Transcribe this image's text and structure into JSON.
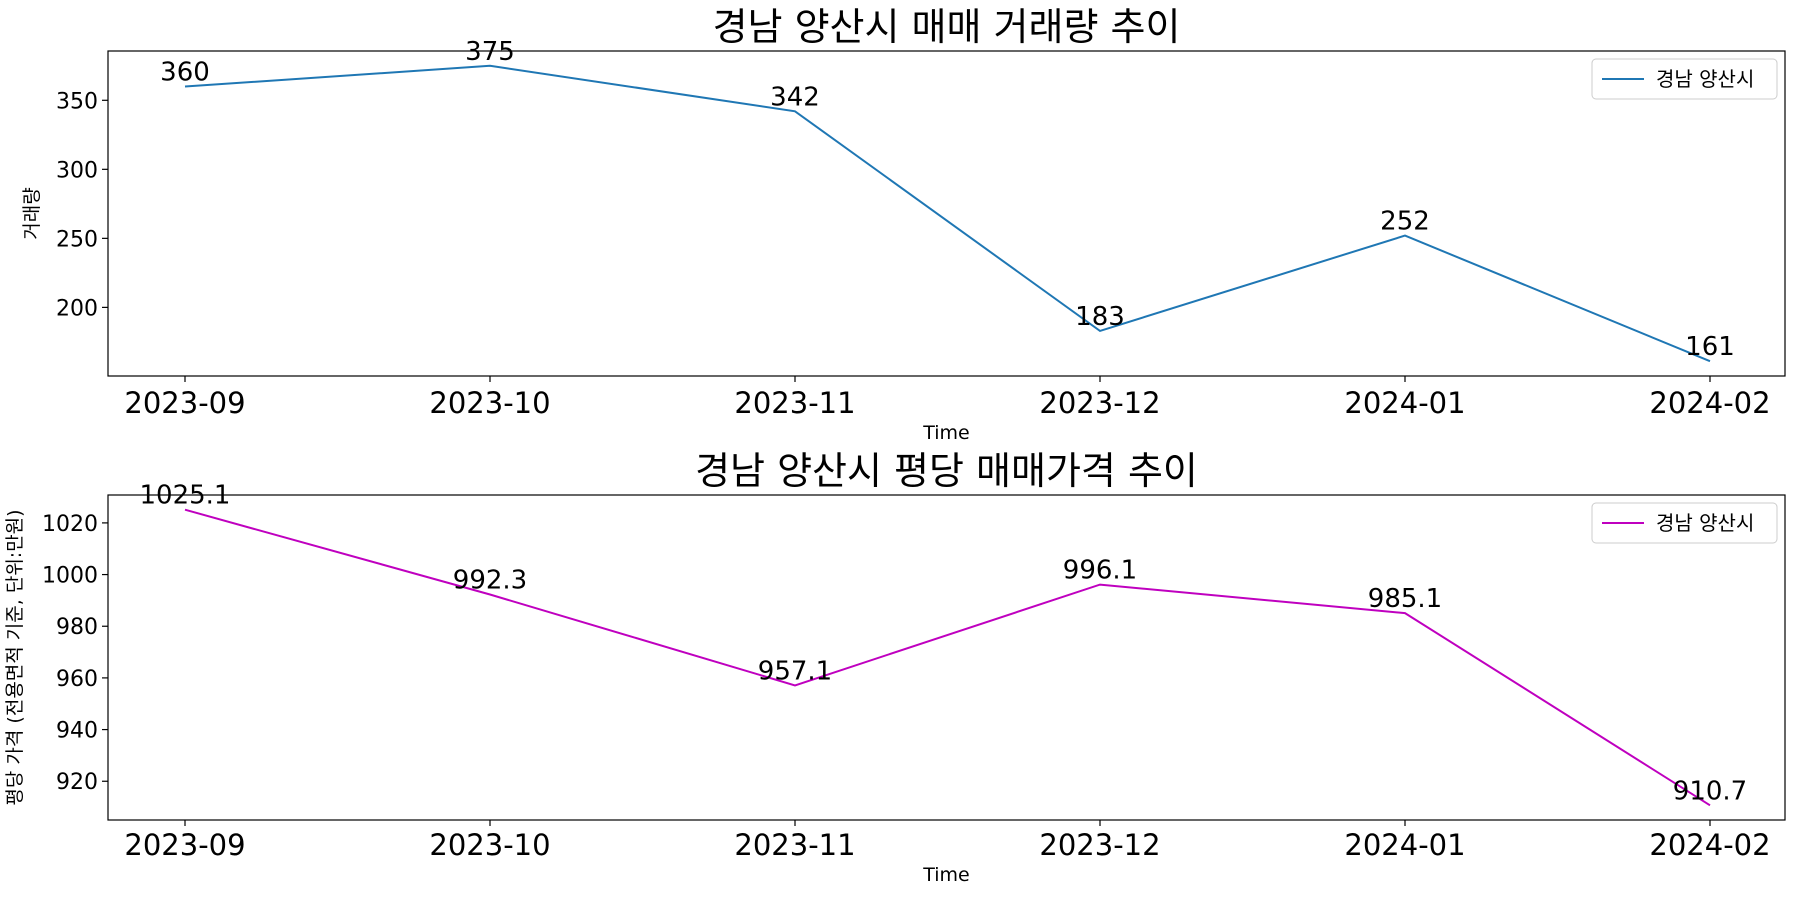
{
  "chart_data": [
    {
      "type": "line",
      "title": "경남 양산시 매매 거래량 추이",
      "xlabel": "Time",
      "ylabel": "거래량",
      "categories": [
        "2023-09",
        "2023-10",
        "2023-11",
        "2023-12",
        "2024-01",
        "2024-02"
      ],
      "series": [
        {
          "name": "경남 양산시",
          "values": [
            360,
            375,
            342,
            183,
            252,
            161
          ],
          "color": "#1f77b4"
        }
      ],
      "data_labels": [
        "360",
        "375",
        "342",
        "183",
        "252",
        "161"
      ],
      "yticks": [
        200,
        250,
        300,
        350
      ],
      "ylim": [
        150.3,
        385.7
      ],
      "grid": false,
      "legend_position": "top-right"
    },
    {
      "type": "line",
      "title": "경남 양산시 평당 매매가격 추이",
      "xlabel": "Time",
      "ylabel": "평당 가격 (전용면적 기준, 단위:만원)",
      "categories": [
        "2023-09",
        "2023-10",
        "2023-11",
        "2023-12",
        "2024-01",
        "2024-02"
      ],
      "series": [
        {
          "name": "경남 양산시",
          "values": [
            1025.1,
            992.3,
            957.1,
            996.1,
            985.1,
            910.7
          ],
          "color": "#bf00bf"
        }
      ],
      "data_labels": [
        "1025.1",
        "992.3",
        "957.1",
        "996.1",
        "985.1",
        "910.7"
      ],
      "yticks": [
        920,
        940,
        960,
        980,
        1000,
        1020
      ],
      "ylim": [
        905.0,
        1030.8
      ],
      "grid": false,
      "legend_position": "top-right"
    }
  ]
}
